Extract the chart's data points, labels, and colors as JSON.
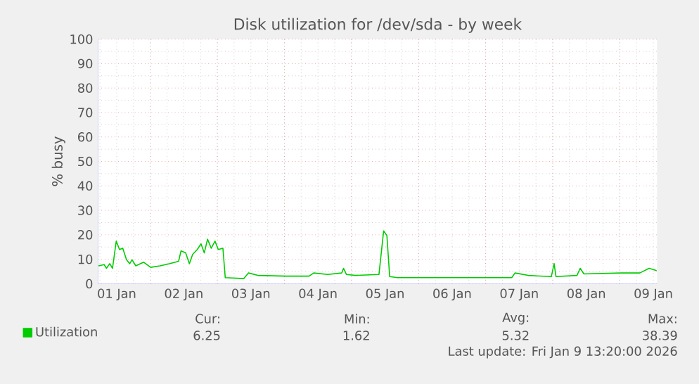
{
  "chart_data": {
    "type": "line",
    "title": "Disk utilization for /dev/sda - by week",
    "ylabel": "% busy",
    "xlim": [
      "2026-01-01T05:20",
      "2026-01-09T13:20"
    ],
    "xticks": [
      {
        "value": "2026-01-01T12:00",
        "label": "01 Jan"
      },
      {
        "value": "2026-01-02T12:00",
        "label": "02 Jan"
      },
      {
        "value": "2026-01-03T12:00",
        "label": "03 Jan"
      },
      {
        "value": "2026-01-04T12:00",
        "label": "04 Jan"
      },
      {
        "value": "2026-01-05T12:00",
        "label": "05 Jan"
      },
      {
        "value": "2026-01-06T12:00",
        "label": "06 Jan"
      },
      {
        "value": "2026-01-07T12:00",
        "label": "07 Jan"
      },
      {
        "value": "2026-01-08T12:00",
        "label": "08 Jan"
      },
      {
        "value": "2026-01-09T12:00",
        "label": "09 Jan"
      }
    ],
    "ylim": [
      0,
      100
    ],
    "yticks": [
      0,
      10,
      20,
      30,
      40,
      50,
      60,
      70,
      80,
      90,
      100
    ],
    "grid": true,
    "legend": "bottom left",
    "marker": "none",
    "line_style": "solid",
    "series": [
      {
        "name": "Utilization",
        "color": "#00cc00",
        "x": [
          "2026-01-01T05:30",
          "2026-01-01T07:30",
          "2026-01-01T08:20",
          "2026-01-01T09:30",
          "2026-01-01T10:30",
          "2026-01-01T11:50",
          "2026-01-01T13:00",
          "2026-01-01T14:10",
          "2026-01-01T15:30",
          "2026-01-01T16:40",
          "2026-01-01T17:30",
          "2026-01-01T18:50",
          "2026-01-01T21:40",
          "2026-01-02T00:10",
          "2026-01-02T03:30",
          "2026-01-02T06:50",
          "2026-01-02T10:10",
          "2026-01-02T11:00",
          "2026-01-02T12:40",
          "2026-01-02T14:00",
          "2026-01-02T15:10",
          "2026-01-02T16:50",
          "2026-01-02T18:10",
          "2026-01-02T19:20",
          "2026-01-02T20:30",
          "2026-01-02T21:50",
          "2026-01-02T23:10",
          "2026-01-03T00:20",
          "2026-01-03T02:00",
          "2026-01-03T02:50",
          "2026-01-03T09:30",
          "2026-01-03T11:10",
          "2026-01-03T14:30",
          "2026-01-04T00:30",
          "2026-01-04T08:50",
          "2026-01-04T10:30",
          "2026-01-04T15:30",
          "2026-01-04T20:30",
          "2026-01-04T21:10",
          "2026-01-04T22:10",
          "2026-01-05T01:30",
          "2026-01-05T09:50",
          "2026-01-05T11:30",
          "2026-01-05T12:40",
          "2026-01-05T13:40",
          "2026-01-05T16:30",
          "2026-01-06T22:30",
          "2026-01-07T09:20",
          "2026-01-07T10:30",
          "2026-01-07T15:10",
          "2026-01-07T23:30",
          "2026-01-08T00:30",
          "2026-01-08T01:10",
          "2026-01-08T08:40",
          "2026-01-08T09:50",
          "2026-01-08T11:10",
          "2026-01-09T00:30",
          "2026-01-09T07:10",
          "2026-01-09T10:30",
          "2026-01-09T13:10"
        ],
        "values": [
          7.3,
          7.8,
          6.3,
          8.2,
          6.3,
          17.4,
          14,
          14.5,
          9.8,
          8.2,
          9.8,
          7.3,
          8.8,
          6.7,
          7.3,
          8.2,
          9.2,
          13.4,
          12.6,
          8.2,
          12,
          14,
          16.3,
          12.6,
          18.2,
          14.5,
          17.4,
          14,
          14.5,
          2.5,
          2.1,
          4.4,
          3.4,
          3.1,
          3.1,
          4.4,
          3.8,
          4.4,
          6.3,
          3.8,
          3.4,
          3.8,
          21.6,
          19.7,
          2.9,
          2.5,
          2.5,
          2.5,
          4.4,
          3.4,
          2.9,
          8.2,
          2.9,
          3.4,
          6.3,
          4.0,
          4.4,
          4.4,
          6.3,
          5.4
        ]
      }
    ],
    "annotations": [
      "Cur:",
      "Min:",
      "Avg:",
      "Max:",
      "6.25",
      "1.62",
      "5.32",
      "38.39",
      "Last update: Fri Jan  9 13:20:00 2026"
    ]
  }
}
